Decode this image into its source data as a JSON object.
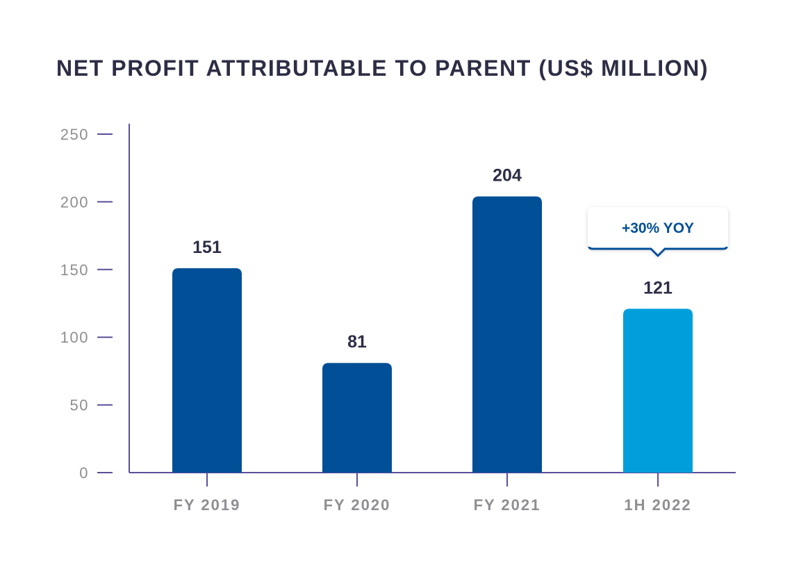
{
  "chart_data": {
    "type": "bar",
    "title": "NET PROFIT ATTRIBUTABLE TO PARENT (US$ MILLION)",
    "categories": [
      "FY 2019",
      "FY 2020",
      "FY 2021",
      "1H 2022"
    ],
    "values": [
      151,
      81,
      204,
      121
    ],
    "value_labels": [
      "151",
      "81",
      "204",
      "121"
    ],
    "yticks": [
      0,
      50,
      100,
      150,
      200,
      250
    ],
    "ylim": [
      0,
      250
    ],
    "xlabel": "",
    "ylabel": "",
    "grid": false,
    "legend": "none",
    "annotation": {
      "text": "+30% YOY",
      "category": "1H 2022"
    },
    "colors": {
      "bar": "#004f97",
      "bar_highlight": "#009fdb",
      "axis": "#5b4e9a",
      "title": "#2d2e45",
      "tick_text": "#8e8e93",
      "callout_text": "#004f97"
    },
    "highlight_index": 3
  }
}
